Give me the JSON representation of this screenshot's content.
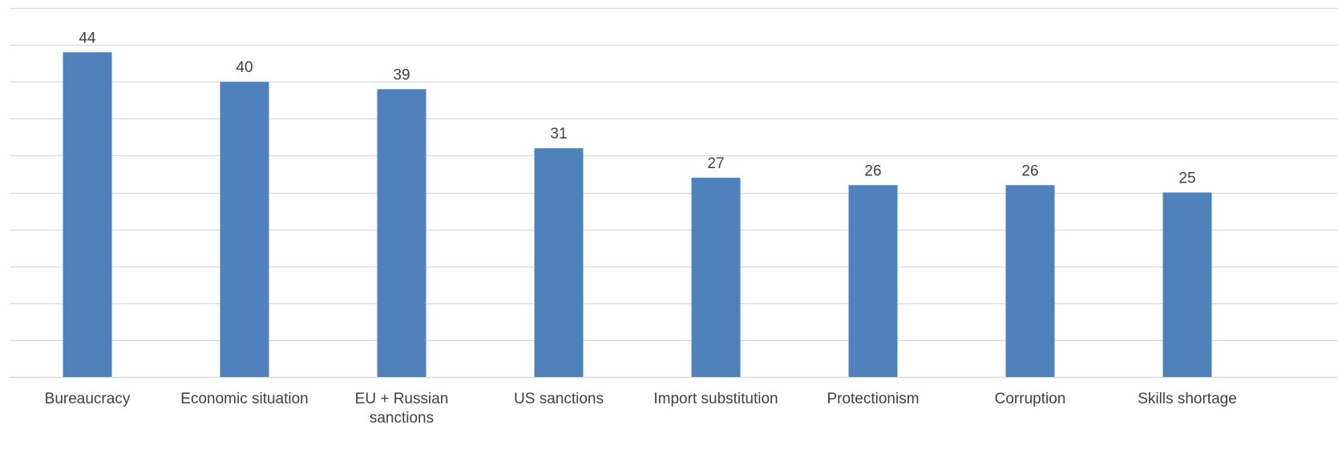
{
  "chart_data": {
    "type": "bar",
    "categories": [
      [
        "Bureaucracy"
      ],
      [
        "Economic situation"
      ],
      [
        "EU + Russian",
        "sanctions"
      ],
      [
        "US sanctions"
      ],
      [
        "Import substitution"
      ],
      [
        "Protectionism"
      ],
      [
        "Corruption"
      ],
      [
        "Skills shortage"
      ]
    ],
    "values": [
      44,
      40,
      39,
      31,
      27,
      26,
      26,
      25
    ],
    "data_labels": [
      "44",
      "40",
      "39",
      "31",
      "27",
      "26",
      "26",
      "25"
    ],
    "ylim": [
      0,
      50
    ],
    "gridline_step": 5,
    "grid": true,
    "legend": "none",
    "title": "",
    "xlabel": "",
    "ylabel": "",
    "bar_color": "#4f81bd",
    "gridline_color": "#d9d9d9",
    "text_color": "#404040"
  }
}
